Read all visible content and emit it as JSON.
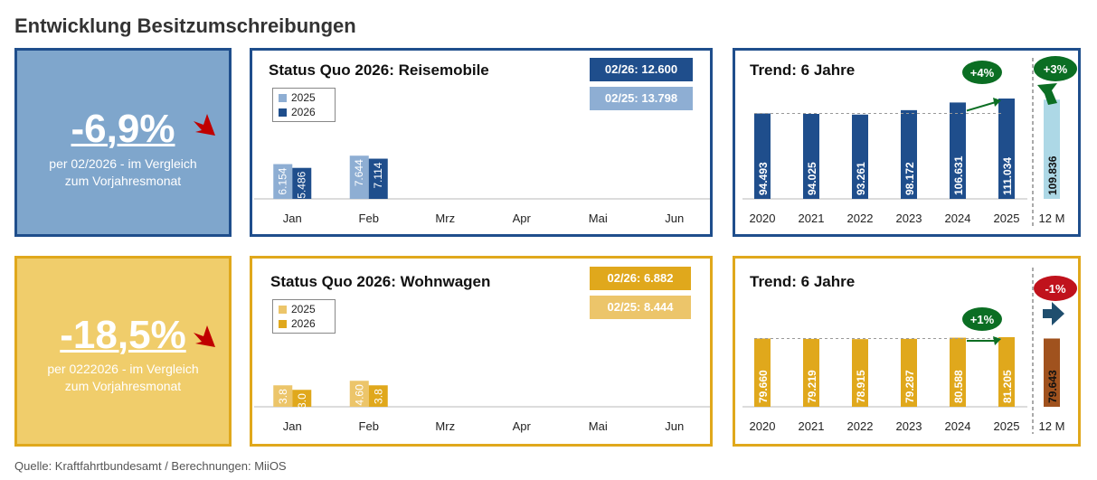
{
  "page": {
    "title": "Entwicklung Besitzumschreibungen",
    "source": "Quelle: Kraftfahrtbundesamt / Berechnungen: MiiOS"
  },
  "colors": {
    "blue_dark": "#1f4e8c",
    "blue_light": "#8eaed3",
    "blue_kpi_bg": "#7fa6cc",
    "blue_border": "#1f4e8c",
    "blue_12m": "#add8e6",
    "gold_dark": "#e0a81c",
    "gold_light": "#ecc56a",
    "gold_kpi_bg": "#f0cd6b",
    "gold_border": "#e0a81c",
    "brown_12m": "#a0521e",
    "green_badge": "#0b6e23",
    "red_badge": "#c0121c",
    "red_arrow": "#c00000",
    "dark_arrow": "#1f4e6e"
  },
  "reisemobile": {
    "kpi": {
      "value": "-6,9%",
      "desc_line1": "per 02/2026 - im Vergleich",
      "desc_line2": "zum Vorjahresmonat"
    },
    "status": {
      "title": "Status Quo 2026: Reisemobile",
      "tag_2026": "02/26: 12.600",
      "tag_2025": "02/25: 13.798",
      "legend_2025": "2025",
      "legend_2026": "2026"
    },
    "trend": {
      "title": "Trend: 6 Jahre",
      "badge_6y": "+4%",
      "badge_12m": "+3%"
    }
  },
  "wohnwagen": {
    "kpi": {
      "value": "-18,5%",
      "desc_line1": "per 0222026 - im Vergleich",
      "desc_line2": "zum Vorjahresmonat"
    },
    "status": {
      "title": "Status Quo 2026: Wohnwagen",
      "tag_2026": "02/26: 6.882",
      "tag_2025": "02/25: 8.444",
      "legend_2025": "2025",
      "legend_2026": "2026"
    },
    "trend": {
      "title": "Trend: 6 Jahre",
      "badge_6y": "+1%",
      "badge_12m": "-1%"
    }
  },
  "chart_data": [
    {
      "id": "status_reisemobile",
      "type": "bar",
      "title": "Status Quo 2026: Reisemobile",
      "categories": [
        "Jan",
        "Feb",
        "Mrz",
        "Apr",
        "Mai",
        "Jun"
      ],
      "series": [
        {
          "name": "2025",
          "values": [
            6154,
            7644,
            null,
            null,
            null,
            null
          ],
          "labels": [
            "6.154",
            "7.644",
            "",
            "",
            "",
            ""
          ]
        },
        {
          "name": "2026",
          "values": [
            5486,
            7114,
            null,
            null,
            null,
            null
          ],
          "labels": [
            "5.486",
            "7.114",
            "",
            "",
            "",
            ""
          ]
        }
      ],
      "ylim": [
        0,
        20000
      ]
    },
    {
      "id": "trend_reisemobile",
      "type": "bar",
      "title": "Trend: 6 Jahre",
      "categories": [
        "2020",
        "2021",
        "2022",
        "2023",
        "2024",
        "2025",
        "12 M"
      ],
      "values": [
        94493,
        94025,
        93261,
        98172,
        106631,
        111034,
        109836
      ],
      "labels": [
        "94.493",
        "94.025",
        "93.261",
        "98.172",
        "106.631",
        "111.034",
        "109.836"
      ],
      "ylim": [
        0,
        111034
      ]
    },
    {
      "id": "status_wohnwagen",
      "type": "bar",
      "title": "Status Quo 2026: Wohnwagen",
      "categories": [
        "Jan",
        "Feb",
        "Mrz",
        "Apr",
        "Mai",
        "Jun"
      ],
      "series": [
        {
          "name": "2025",
          "values": [
            3800,
            4600,
            null,
            null,
            null,
            null
          ],
          "labels": [
            "3.8",
            "4.60",
            "",
            "",
            "",
            ""
          ]
        },
        {
          "name": "2026",
          "values": [
            3000,
            3800,
            null,
            null,
            null,
            null
          ],
          "labels": [
            "3.0",
            "3.8",
            "",
            "",
            "",
            ""
          ]
        }
      ],
      "ylim": [
        0,
        20000
      ]
    },
    {
      "id": "trend_wohnwagen",
      "type": "bar",
      "title": "Trend: 6 Jahre",
      "categories": [
        "2020",
        "2021",
        "2022",
        "2023",
        "2024",
        "2025",
        "12 M"
      ],
      "values": [
        79660,
        79219,
        78915,
        79287,
        80588,
        81205,
        79643
      ],
      "labels": [
        "79.660",
        "79.219",
        "78.915",
        "79.287",
        "80.588",
        "81.205",
        "79.643"
      ],
      "ylim": [
        0,
        81205
      ]
    }
  ]
}
